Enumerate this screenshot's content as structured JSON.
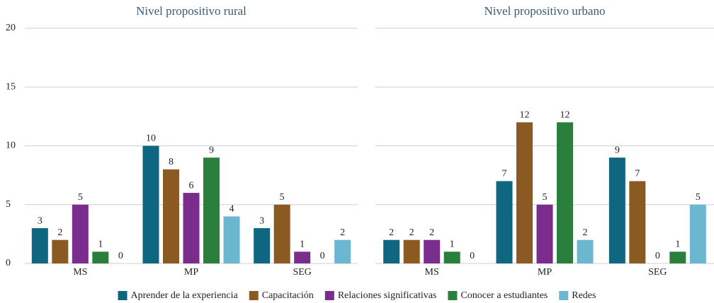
{
  "chart_data": [
    {
      "type": "bar",
      "title": "Nivel propositivo rural",
      "categories": [
        "MS",
        "MP",
        "SEG"
      ],
      "series": [
        {
          "name": "Aprender de la experiencia",
          "color": "#0e6680",
          "values": [
            3,
            10,
            3
          ]
        },
        {
          "name": "Capacitación",
          "color": "#8b5a23",
          "values": [
            2,
            8,
            5
          ]
        },
        {
          "name": "Relaciones significativas",
          "color": "#7b2d8e",
          "values": [
            5,
            6,
            1
          ]
        },
        {
          "name": "Conocer a estudiantes",
          "color": "#2a7f3c",
          "values": [
            1,
            9,
            0
          ]
        },
        {
          "name": "Redes",
          "color": "#6bb7cf",
          "values": [
            0,
            4,
            2
          ]
        }
      ],
      "ylim": [
        0,
        20
      ],
      "yticks": [
        0,
        5,
        10,
        15,
        20
      ],
      "grid": true,
      "legend": "bottom"
    },
    {
      "type": "bar",
      "title": "Nivel propositivo urbano",
      "categories": [
        "MS",
        "MP",
        "SEG"
      ],
      "series": [
        {
          "name": "Aprender de la experiencia",
          "color": "#0e6680",
          "values": [
            2,
            7,
            9
          ]
        },
        {
          "name": "Capacitación",
          "color": "#8b5a23",
          "values": [
            2,
            12,
            7
          ]
        },
        {
          "name": "Relaciones significativas",
          "color": "#7b2d8e",
          "values": [
            2,
            5,
            0
          ]
        },
        {
          "name": "Conocer a estudiantes",
          "color": "#2a7f3c",
          "values": [
            1,
            12,
            1
          ]
        },
        {
          "name": "Redes",
          "color": "#6bb7cf",
          "values": [
            0,
            2,
            5
          ]
        }
      ],
      "ylim": [
        0,
        20
      ],
      "yticks": [
        0,
        5,
        10,
        15,
        20
      ],
      "grid": true
    }
  ]
}
